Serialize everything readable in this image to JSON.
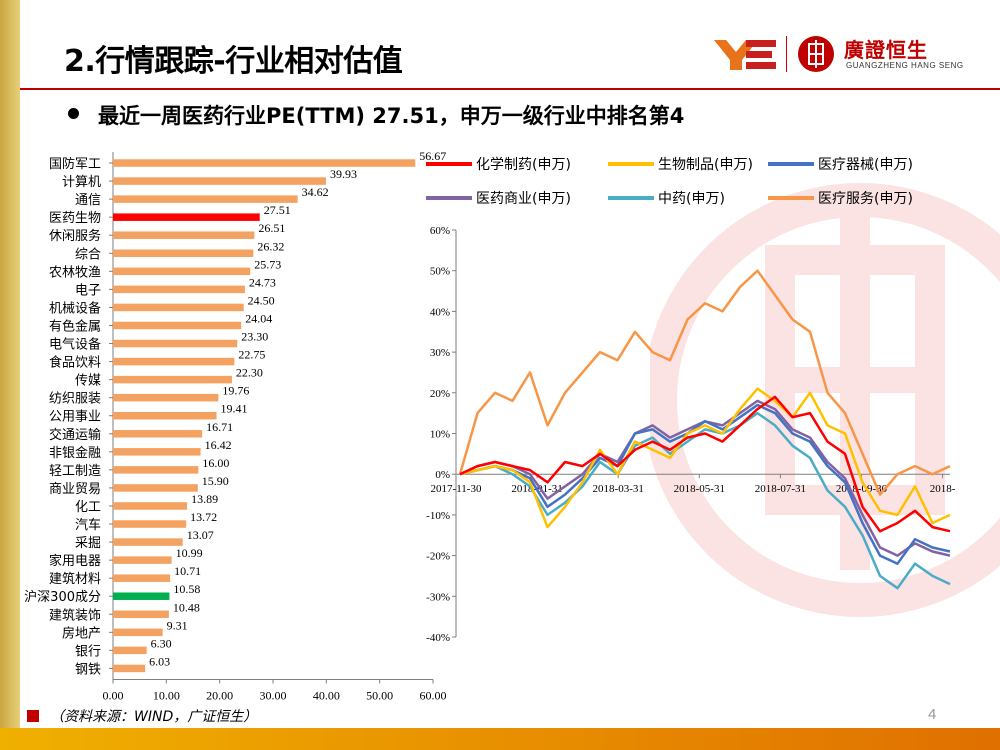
{
  "header": {
    "title": "2.行情跟踪-行业相对估值",
    "logo_cn": "廣證恒生",
    "logo_en": "GUANGZHENG HANG SENG"
  },
  "subtitle": "最近一周医药行业PE(TTM) 27.51，申万一级行业中排名第4",
  "source": "（资料来源：WIND，广证恒生）",
  "page_number": "4",
  "colors": {
    "accent": "#c00000",
    "bar": "#f4a261",
    "bar_highlight": "#ff0000",
    "bar_index": "#00b050"
  },
  "chart_data": [
    {
      "type": "bar",
      "orientation": "horizontal",
      "categories": [
        "国防军工",
        "计算机",
        "通信",
        "医药生物",
        "休闲服务",
        "综合",
        "农林牧渔",
        "电子",
        "机械设备",
        "有色金属",
        "电气设备",
        "食品饮料",
        "传媒",
        "纺织服装",
        "公用事业",
        "交通运输",
        "非银金融",
        "轻工制造",
        "商业贸易",
        "化工",
        "汽车",
        "采掘",
        "家用电器",
        "建筑材料",
        "沪深300成分",
        "建筑装饰",
        "房地产",
        "银行",
        "钢铁"
      ],
      "values": [
        56.67,
        39.93,
        34.62,
        27.51,
        26.51,
        26.32,
        25.73,
        24.73,
        24.5,
        24.04,
        23.3,
        22.75,
        22.3,
        19.76,
        19.41,
        16.71,
        16.42,
        16.0,
        15.9,
        13.89,
        13.72,
        13.07,
        10.99,
        10.71,
        10.58,
        10.48,
        9.31,
        6.3,
        6.03
      ],
      "value_labels": [
        "56.67",
        "39.93",
        "34.62",
        "27.51",
        "26.51",
        "26.32",
        "25.73",
        "24.73",
        "24.50",
        "24.04",
        "23.30",
        "22.75",
        "22.30",
        "19.76",
        "19.41",
        "16.71",
        "16.42",
        "16.00",
        "15.90",
        "13.89",
        "13.72",
        "13.07",
        "10.99",
        "10.71",
        "10.58",
        "10.48",
        "9.31",
        "6.30",
        "6.03"
      ],
      "highlight": {
        "医药生物": "#ff0000",
        "沪深300成分": "#00b050"
      },
      "xlim": [
        0,
        60
      ],
      "xticks": [
        "0.00",
        "10.00",
        "20.00",
        "30.00",
        "40.00",
        "50.00",
        "60.00"
      ],
      "title": "",
      "xlabel": "",
      "ylabel": ""
    },
    {
      "type": "line",
      "x_ticks": [
        "2017-11-30",
        "2018-01-31",
        "2018-03-31",
        "2018-05-31",
        "2018-07-31",
        "2018-09-30",
        "2018-"
      ],
      "ylim": [
        -0.4,
        0.6
      ],
      "yticks": [
        "60%",
        "50%",
        "40%",
        "30%",
        "20%",
        "10%",
        "0%",
        "-10%",
        "-20%",
        "-30%",
        "-40%"
      ],
      "legend_position": "top",
      "series": [
        {
          "name": "化学制药(申万)",
          "color": "#ff0000",
          "values": [
            0,
            0.02,
            0.03,
            0.02,
            0.01,
            -0.02,
            0.03,
            0.02,
            0.05,
            0.02,
            0.06,
            0.08,
            0.06,
            0.09,
            0.1,
            0.08,
            0.12,
            0.16,
            0.19,
            0.14,
            0.15,
            0.08,
            0.05,
            -0.08,
            -0.14,
            -0.12,
            -0.09,
            -0.13,
            -0.14
          ]
        },
        {
          "name": "生物制品(申万)",
          "color": "#ffc000",
          "values": [
            0,
            0.01,
            0.02,
            0.01,
            -0.02,
            -0.13,
            -0.08,
            -0.02,
            0.06,
            0.0,
            0.08,
            0.06,
            0.04,
            0.1,
            0.12,
            0.1,
            0.16,
            0.21,
            0.18,
            0.14,
            0.2,
            0.12,
            0.1,
            -0.02,
            -0.09,
            -0.1,
            -0.03,
            -0.12,
            -0.1
          ]
        },
        {
          "name": "医疗器械(申万)",
          "color": "#4472c4",
          "values": [
            0,
            0.01,
            0.02,
            0.01,
            -0.01,
            -0.08,
            -0.05,
            -0.01,
            0.04,
            0.02,
            0.1,
            0.11,
            0.08,
            0.1,
            0.13,
            0.11,
            0.14,
            0.17,
            0.15,
            0.1,
            0.08,
            0.02,
            -0.02,
            -0.12,
            -0.2,
            -0.22,
            -0.16,
            -0.18,
            -0.19
          ]
        },
        {
          "name": "医药商业(申万)",
          "color": "#8064a2",
          "values": [
            0,
            0.02,
            0.03,
            0.02,
            0.0,
            -0.06,
            -0.03,
            0.0,
            0.05,
            0.03,
            0.1,
            0.12,
            0.09,
            0.11,
            0.13,
            0.12,
            0.15,
            0.18,
            0.16,
            0.11,
            0.09,
            0.03,
            -0.01,
            -0.1,
            -0.18,
            -0.2,
            -0.17,
            -0.19,
            -0.2
          ]
        },
        {
          "name": "中药(申万)",
          "color": "#4bacc6",
          "values": [
            0,
            0.01,
            0.02,
            0.0,
            -0.03,
            -0.1,
            -0.07,
            -0.03,
            0.03,
            0.0,
            0.07,
            0.09,
            0.05,
            0.08,
            0.11,
            0.1,
            0.12,
            0.15,
            0.12,
            0.07,
            0.04,
            -0.04,
            -0.08,
            -0.15,
            -0.25,
            -0.28,
            -0.22,
            -0.25,
            -0.27
          ]
        },
        {
          "name": "医疗服务(申万)",
          "color": "#f79646",
          "values": [
            0,
            0.15,
            0.2,
            0.18,
            0.25,
            0.12,
            0.2,
            0.25,
            0.3,
            0.28,
            0.35,
            0.3,
            0.28,
            0.38,
            0.42,
            0.4,
            0.46,
            0.5,
            0.44,
            0.38,
            0.35,
            0.2,
            0.15,
            0.05,
            -0.05,
            0.0,
            0.02,
            0.0,
            0.02
          ]
        }
      ],
      "title": "",
      "xlabel": "",
      "ylabel": ""
    }
  ]
}
